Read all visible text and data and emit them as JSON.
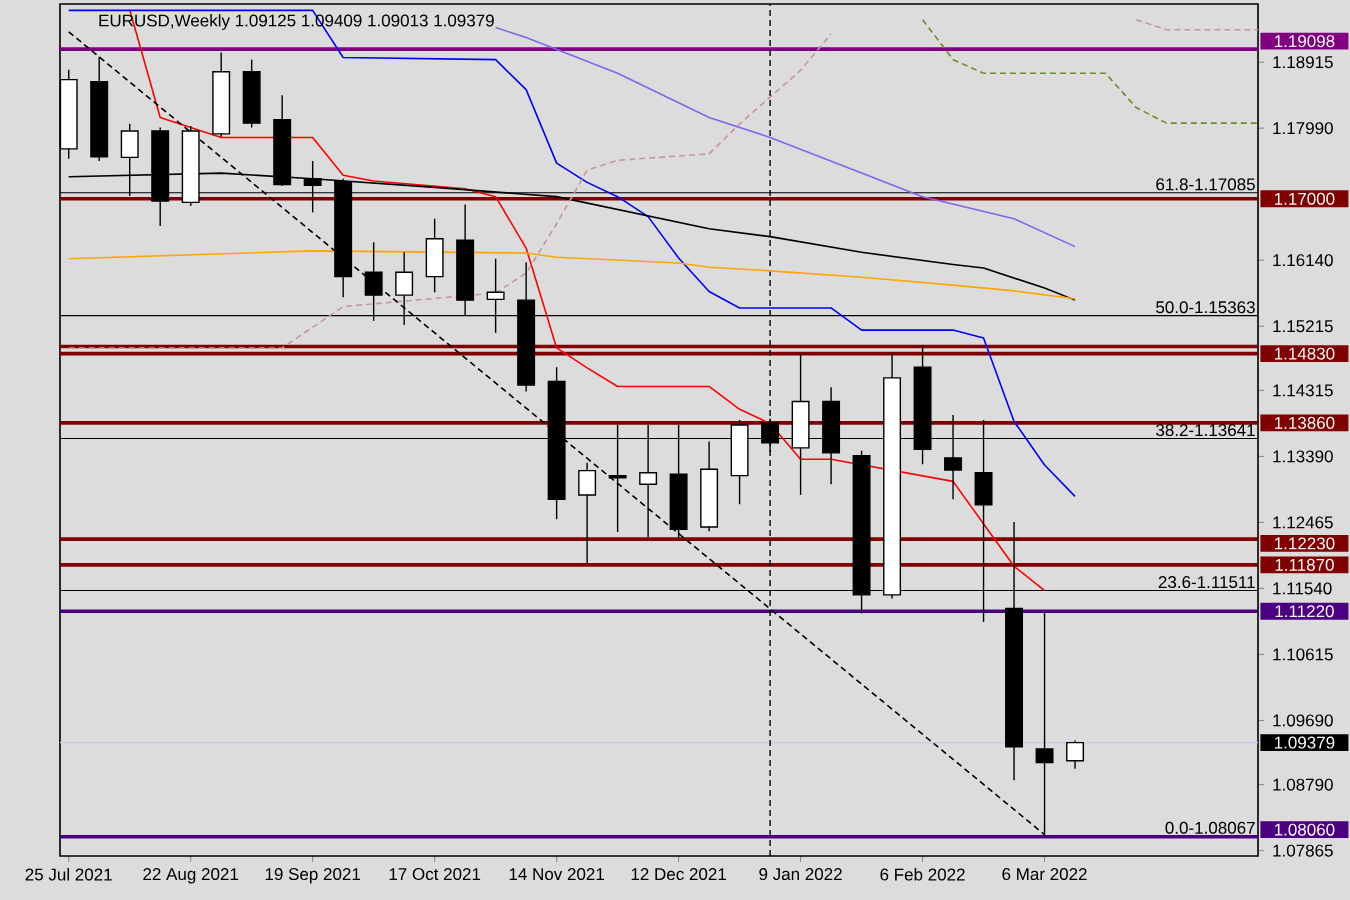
{
  "chart_data": {
    "type": "candlestick",
    "title": "EURUSD,Weekly  1.09125 1.09409 1.09013 1.09379",
    "x": [
      "2021-07-25",
      "2021-08-01",
      "2021-08-08",
      "2021-08-15",
      "2021-08-22",
      "2021-08-29",
      "2021-09-05",
      "2021-09-12",
      "2021-09-19",
      "2021-09-26",
      "2021-10-03",
      "2021-10-10",
      "2021-10-17",
      "2021-10-24",
      "2021-10-31",
      "2021-11-07",
      "2021-11-14",
      "2021-11-21",
      "2021-11-28",
      "2021-12-05",
      "2021-12-12",
      "2021-12-19",
      "2021-12-26",
      "2022-01-02",
      "2022-01-09",
      "2022-01-16",
      "2022-01-23",
      "2022-01-30",
      "2022-02-06",
      "2022-02-13",
      "2022-02-20",
      "2022-02-27",
      "2022-03-06",
      "2022-03-13"
    ],
    "ohlc": [
      [
        1.177,
        1.1881,
        1.1756,
        1.1867
      ],
      [
        1.1864,
        1.1899,
        1.1753,
        1.1759
      ],
      [
        1.1758,
        1.1805,
        1.1704,
        1.1795
      ],
      [
        1.1795,
        1.18,
        1.1662,
        1.1697
      ],
      [
        1.1695,
        1.1802,
        1.169,
        1.1795
      ],
      [
        1.1791,
        1.1905,
        1.1787,
        1.1878
      ],
      [
        1.1878,
        1.1895,
        1.18,
        1.1806
      ],
      [
        1.1811,
        1.1845,
        1.1718,
        1.172
      ],
      [
        1.1728,
        1.1753,
        1.1681,
        1.1719
      ],
      [
        1.1724,
        1.1728,
        1.1562,
        1.1591
      ],
      [
        1.1597,
        1.1639,
        1.1529,
        1.1565
      ],
      [
        1.1565,
        1.1625,
        1.1523,
        1.1597
      ],
      [
        1.1591,
        1.1672,
        1.1569,
        1.1644
      ],
      [
        1.1642,
        1.1692,
        1.1537,
        1.1558
      ],
      [
        1.1559,
        1.1616,
        1.1512,
        1.1569
      ],
      [
        1.1558,
        1.1611,
        1.143,
        1.1439
      ],
      [
        1.1444,
        1.1464,
        1.1251,
        1.1279
      ],
      [
        1.1285,
        1.133,
        1.1189,
        1.1319
      ],
      [
        1.1312,
        1.1383,
        1.1233,
        1.1309
      ],
      [
        1.13,
        1.1383,
        1.1226,
        1.1316
      ],
      [
        1.1314,
        1.1383,
        1.1223,
        1.1237
      ],
      [
        1.124,
        1.136,
        1.1234,
        1.1321
      ],
      [
        1.1312,
        1.139,
        1.1272,
        1.1383
      ],
      [
        1.1386,
        1.1392,
        1.1345,
        1.1358
      ],
      [
        1.1351,
        1.1483,
        1.1285,
        1.1416
      ],
      [
        1.1416,
        1.1436,
        1.13,
        1.1344
      ],
      [
        1.134,
        1.1347,
        1.1119,
        1.1145
      ],
      [
        1.1145,
        1.1484,
        1.114,
        1.1449
      ],
      [
        1.1464,
        1.1495,
        1.1328,
        1.1349
      ],
      [
        1.1337,
        1.1397,
        1.1279,
        1.132
      ],
      [
        1.1316,
        1.139,
        1.1107,
        1.1271
      ],
      [
        1.1126,
        1.1247,
        1.0885,
        1.0932
      ],
      [
        1.0929,
        1.1121,
        1.0806,
        1.091
      ],
      [
        1.09125,
        1.09409,
        1.09013,
        1.09379
      ]
    ],
    "series": [
      {
        "type": "line",
        "color": "#ff0000",
        "line_style": "solid",
        "x": [
          "2021-08-08",
          "2021-08-15",
          "2021-08-22",
          "2021-08-29",
          "2021-09-19",
          "2021-09-26",
          "2021-10-03",
          "2021-10-24",
          "2021-10-31",
          "2021-11-07",
          "2021-11-14",
          "2021-11-21",
          "2021-11-28",
          "2021-12-19",
          "2021-12-26",
          "2022-01-02",
          "2022-01-09",
          "2022-01-16",
          "2022-02-13",
          "2022-02-27",
          "2022-03-06"
        ],
        "values": [
          1.1965,
          1.1814,
          1.18,
          1.1786,
          1.1786,
          1.1733,
          1.1725,
          1.1714,
          1.1703,
          1.1631,
          1.1491,
          1.1463,
          1.1437,
          1.1437,
          1.1405,
          1.1385,
          1.1335,
          1.1335,
          1.1304,
          1.1185,
          1.1151
        ]
      },
      {
        "type": "line",
        "color": "#0000ff",
        "line_style": "solid",
        "x": [
          "2021-07-25",
          "2021-09-19",
          "2021-09-26",
          "2021-10-31",
          "2021-11-07",
          "2021-11-14",
          "2021-11-21",
          "2021-11-28",
          "2021-12-05",
          "2021-12-12",
          "2021-12-19",
          "2021-12-26",
          "2022-01-16",
          "2022-01-23",
          "2022-02-13",
          "2022-02-20",
          "2022-02-27",
          "2022-03-06",
          "2022-03-13"
        ],
        "values": [
          1.1964,
          1.1964,
          1.1898,
          1.1895,
          1.1853,
          1.175,
          1.1723,
          1.1703,
          1.1675,
          1.1617,
          1.157,
          1.1547,
          1.1547,
          1.1516,
          1.1516,
          1.1505,
          1.1388,
          1.1327,
          1.1283
        ]
      },
      {
        "type": "line",
        "color": "#000000",
        "line_style": "solid",
        "x": [
          "2021-07-25",
          "2021-08-29",
          "2021-09-19",
          "2021-10-17",
          "2021-11-14",
          "2021-12-19",
          "2022-01-02",
          "2022-01-23",
          "2022-02-13",
          "2022-02-20",
          "2022-03-06",
          "2022-03-13"
        ],
        "values": [
          1.1731,
          1.1736,
          1.1728,
          1.1716,
          1.1703,
          1.1658,
          1.1647,
          1.1625,
          1.1608,
          1.1603,
          1.1575,
          1.1558
        ]
      },
      {
        "type": "line",
        "color": "#ffa500",
        "line_style": "solid",
        "x": [
          "2021-07-25",
          "2021-09-19",
          "2021-11-07",
          "2021-11-14",
          "2021-12-12",
          "2021-12-19",
          "2022-01-02",
          "2022-01-23",
          "2022-02-13",
          "2022-02-27",
          "2022-03-13"
        ],
        "values": [
          1.1616,
          1.1627,
          1.1624,
          1.1618,
          1.161,
          1.1604,
          1.1599,
          1.159,
          1.1579,
          1.1571,
          1.156
        ]
      },
      {
        "type": "line",
        "color": "#7b68ee",
        "line_style": "solid",
        "x": [
          "2021-10-31",
          "2021-11-07",
          "2021-11-28",
          "2021-12-19",
          "2022-01-02",
          "2022-01-23",
          "2022-02-06",
          "2022-02-27",
          "2022-03-13"
        ],
        "values": [
          1.194,
          1.1926,
          1.1876,
          1.1814,
          1.1786,
          1.1736,
          1.1703,
          1.1672,
          1.1633
        ]
      },
      {
        "type": "line",
        "color": "#c89696",
        "line_style": "dashed",
        "x": [
          "2021-07-25",
          "2021-09-12",
          "2021-09-26",
          "2021-10-31",
          "2021-11-07",
          "2021-11-14",
          "2021-11-21",
          "2021-11-28",
          "2021-12-19",
          "2021-12-26",
          "2022-01-09",
          "2022-01-16",
          "2022-01-23",
          "2022-03-27",
          "2022-04-03",
          "2022-04-24"
        ],
        "values": [
          1.1491,
          1.1491,
          1.1549,
          1.1568,
          1.1596,
          1.1665,
          1.174,
          1.1754,
          1.1763,
          1.1805,
          1.188,
          1.1931,
          null,
          1.1951,
          1.1937,
          1.1937
        ]
      },
      {
        "type": "line",
        "color": "#6b8e23",
        "line_style": "dashed",
        "x": [
          "2022-02-06",
          "2022-02-13",
          "2022-02-20",
          "2022-03-20",
          "2022-03-27",
          "2022-04-03",
          "2022-04-24"
        ],
        "values": [
          1.1951,
          1.1895,
          1.1876,
          1.1876,
          1.1828,
          1.1806,
          1.1806
        ]
      },
      {
        "type": "line",
        "color": "#000000",
        "line_style": "dashed",
        "x": [
          "2021-07-25",
          "2022-03-06"
        ],
        "values": [
          1.1934,
          1.0809
        ]
      }
    ],
    "ref_lines": [
      {
        "axis": "y",
        "value": 1.19098,
        "label": "1.19098",
        "color": "#800080"
      },
      {
        "axis": "y",
        "value": 1.17085,
        "color": "#000000"
      },
      {
        "axis": "y",
        "value": 1.17,
        "label": "1.17000",
        "color": "#800000"
      },
      {
        "axis": "y",
        "value": 1.15363,
        "color": "#000000"
      },
      {
        "axis": "y",
        "value": 1.1493,
        "color": "#800000"
      },
      {
        "axis": "y",
        "value": 1.1483,
        "label": "1.14830",
        "color": "#800000"
      },
      {
        "axis": "y",
        "value": 1.1386,
        "label": "1.13860",
        "color": "#800000"
      },
      {
        "axis": "y",
        "value": 1.13641,
        "color": "#000000"
      },
      {
        "axis": "y",
        "value": 1.1223,
        "label": "1.12230",
        "color": "#800000"
      },
      {
        "axis": "y",
        "value": 1.1187,
        "label": "1.11870",
        "color": "#800000"
      },
      {
        "axis": "y",
        "value": 1.11511,
        "color": "#000000"
      },
      {
        "axis": "y",
        "value": 1.1122,
        "label": "1.11220",
        "color": "#4b0082"
      },
      {
        "axis": "y",
        "value": 1.09379,
        "label": "1.09379",
        "color": "#c8c8f0"
      },
      {
        "axis": "y",
        "value": 1.0806,
        "label": "1.08060",
        "color": "#4b0082"
      },
      {
        "axis": "x",
        "value": "2022-01-02",
        "color": "#000000",
        "line_style": "dashed"
      }
    ],
    "annotations": [
      {
        "text": "61.8-1.17085",
        "x": "2022-04-24",
        "y": 1.17085
      },
      {
        "text": "50.0-1.15363",
        "x": "2022-04-24",
        "y": 1.15363
      },
      {
        "text": "38.2-1.13641",
        "x": "2022-04-24",
        "y": 1.13641
      },
      {
        "text": "23.6-1.11511",
        "x": "2022-04-24",
        "y": 1.11511
      },
      {
        "text": "0.0-1.08067",
        "x": "2022-04-24",
        "y": 1.08067
      }
    ],
    "xlim": [
      "2021-07-23",
      "2022-04-24"
    ],
    "xticks": [
      {
        "value": "2021-07-25",
        "label": "25 Jul 2021"
      },
      {
        "value": "2021-08-22",
        "label": "22 Aug 2021"
      },
      {
        "value": "2021-09-19",
        "label": "19 Sep 2021"
      },
      {
        "value": "2021-10-17",
        "label": "17 Oct 2021"
      },
      {
        "value": "2021-11-14",
        "label": "14 Nov 2021"
      },
      {
        "value": "2021-12-12",
        "label": "12 Dec 2021"
      },
      {
        "value": "2022-01-09",
        "label": "9 Jan 2022"
      },
      {
        "value": "2022-02-06",
        "label": "6 Feb 2022"
      },
      {
        "value": "2022-03-06",
        "label": "6 Mar 2022"
      }
    ],
    "ylim": [
      1.0779,
      1.1973
    ],
    "yticks": [
      1.18915,
      {
        "value": 1.1799,
        "label": "1.17990"
      },
      {
        "value": 1.1614,
        "label": "1.16140"
      },
      1.15215,
      1.14315,
      {
        "value": 1.1339,
        "label": "1.13390"
      },
      1.12465,
      {
        "value": 1.1154,
        "label": "1.11540"
      },
      1.10615,
      {
        "value": 1.0969,
        "label": "1.09690"
      },
      {
        "value": 1.0879,
        "label": "1.08790"
      },
      1.07865
    ]
  }
}
